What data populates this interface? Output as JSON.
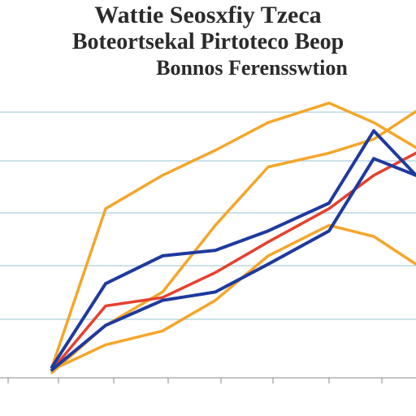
{
  "chart_data": {
    "type": "line",
    "title": [
      "Wattie Seosxfiy Tzeca",
      "Boteortsekal Pirtoteco Beop",
      "Bonnos Ferensswtion"
    ],
    "xlabel": "",
    "ylabel": "",
    "x": [
      1,
      2,
      3,
      4,
      5,
      6,
      7,
      8
    ],
    "x_tick_labels": [
      "",
      "",
      "",
      "",
      "",
      "",
      "",
      ""
    ],
    "ylim": [
      0,
      100
    ],
    "grid": true,
    "legend": "none",
    "colors": {
      "orange": "#f4a62a",
      "navy": "#1f3a9e",
      "red": "#e5412f",
      "grid": "#b8d7e3",
      "axis": "#888888"
    },
    "series": [
      {
        "color": "#f4a62a",
        "values": [
          3,
          60,
          72,
          81,
          91,
          98,
          91,
          82
        ]
      },
      {
        "color": "#f4a62a",
        "values": [
          1,
          18,
          30,
          54,
          75,
          80,
          85,
          95
        ]
      },
      {
        "color": "#f4a62a",
        "values": [
          2,
          11,
          16,
          27,
          43,
          54,
          50,
          40
        ]
      },
      {
        "color": "#e5412f",
        "values": [
          2,
          25,
          28,
          37,
          48,
          60,
          72,
          80
        ]
      },
      {
        "color": "#1f3a9e",
        "values": [
          3,
          33,
          43,
          45,
          52,
          62,
          88,
          72
        ]
      },
      {
        "color": "#1f3a9e",
        "values": [
          2,
          18,
          27,
          30,
          40,
          52,
          78,
          72
        ]
      }
    ]
  }
}
